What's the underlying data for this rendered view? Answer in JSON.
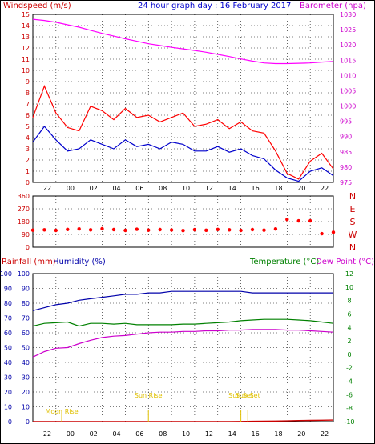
{
  "chart_data": [
    {
      "type": "line",
      "title": "24 hour graph day : 16 February 2017",
      "ylabel": "Windspeed (m/s)",
      "y2label": "Barometer (hpa)",
      "ylim": [
        0,
        15
      ],
      "y2lim": [
        975,
        1030
      ],
      "x_ticks": [
        "22",
        "00",
        "02",
        "04",
        "06",
        "08",
        "10",
        "12",
        "14",
        "16",
        "18",
        "20",
        "22",
        "00"
      ],
      "y_ticks": [
        "0",
        "1",
        "2",
        "3",
        "4",
        "5",
        "6",
        "7",
        "8",
        "9",
        "10",
        "11",
        "12",
        "13",
        "14",
        "15"
      ],
      "y2_ticks": [
        "975",
        "980",
        "985",
        "990",
        "995",
        "1000",
        "1005",
        "1010",
        "1015",
        "1020",
        "1025",
        "1030"
      ],
      "colors": {
        "gust": "#ff0000",
        "average": "#0000cc",
        "barometer": "#ff00ff"
      },
      "x": [
        0,
        1,
        2,
        3,
        4,
        5,
        6,
        7,
        8,
        9,
        10,
        11,
        12,
        13,
        14,
        15,
        16,
        17,
        18,
        19,
        20,
        21,
        22,
        23,
        24,
        25,
        26
      ],
      "series": [
        {
          "key": "gust",
          "values": [
            5.8,
            8.6,
            6.2,
            4.9,
            4.6,
            6.8,
            6.4,
            5.6,
            6.6,
            5.8,
            6.0,
            5.4,
            5.8,
            6.2,
            5.0,
            5.2,
            5.6,
            4.8,
            5.4,
            4.6,
            4.4,
            2.8,
            0.8,
            0.3,
            1.9,
            2.6,
            1.2
          ]
        },
        {
          "key": "average",
          "values": [
            3.6,
            5.0,
            3.8,
            2.8,
            3.0,
            3.8,
            3.4,
            3.0,
            3.8,
            3.2,
            3.4,
            3.0,
            3.6,
            3.4,
            2.8,
            2.8,
            3.2,
            2.7,
            3.0,
            2.4,
            2.1,
            1.1,
            0.4,
            0.1,
            1.0,
            1.3,
            0.6
          ]
        },
        {
          "key": "barometer",
          "values": [
            1028.4,
            1028.0,
            1027.4,
            1026.6,
            1025.8,
            1024.8,
            1023.8,
            1022.9,
            1022.0,
            1021.2,
            1020.4,
            1019.8,
            1019.2,
            1018.7,
            1018.2,
            1017.6,
            1016.9,
            1016.2,
            1015.4,
            1014.7,
            1014.1,
            1013.9,
            1013.9,
            1014.0,
            1014.1,
            1014.4,
            1014.6
          ]
        }
      ]
    },
    {
      "type": "scatter",
      "ylim": [
        0,
        360
      ],
      "y_ticks": [
        "0",
        "90",
        "180",
        "270",
        "360"
      ],
      "y2_ticks": [
        "N",
        "W",
        "S",
        "E",
        "N"
      ],
      "x_ticks": [
        "22",
        "00",
        "02",
        "04",
        "06",
        "08",
        "10",
        "12",
        "14",
        "16",
        "18",
        "20",
        "22",
        "00"
      ],
      "color": "#ff0000",
      "x": [
        0,
        1,
        2,
        3,
        4,
        5,
        6,
        7,
        8,
        9,
        10,
        11,
        12,
        13,
        14,
        15,
        16,
        17,
        18,
        19,
        20,
        21,
        22,
        23,
        24,
        25,
        26
      ],
      "values": [
        120,
        122,
        118,
        125,
        128,
        122,
        130,
        124,
        118,
        126,
        120,
        124,
        121,
        117,
        123,
        119,
        125,
        122,
        118,
        124,
        120,
        128,
        195,
        185,
        185,
        95,
        105
      ]
    },
    {
      "type": "line",
      "ylabel": "Rainfall (mm)",
      "ylabel2": "Humidity (%)",
      "y3label": "Temperature (°C)",
      "y4label": "Dew Point (°C)",
      "ylim": [
        0,
        100
      ],
      "y2lim": [
        -10,
        12
      ],
      "y_ticks": [
        "0",
        "10",
        "20",
        "30",
        "40",
        "50",
        "60",
        "70",
        "80",
        "90",
        "100"
      ],
      "y2_ticks": [
        "-10",
        "-8",
        "-6",
        "-4",
        "-2",
        "0",
        "2",
        "4",
        "6",
        "8",
        "10",
        "12"
      ],
      "x_ticks": [
        "22",
        "00",
        "02",
        "04",
        "06",
        "08",
        "10",
        "12",
        "14",
        "16",
        "18",
        "20",
        "22",
        "00"
      ],
      "colors": {
        "humidity": "#0000aa",
        "temperature": "#008000",
        "dewpoint": "#cc00cc",
        "rainfall": "#cc0000"
      },
      "annotations": [
        {
          "label": "Moon Rise",
          "x": 2.5
        },
        {
          "label": "Sun Rise",
          "x": 10.0
        },
        {
          "label": "Sun Set",
          "x": 18.6
        },
        {
          "label": "Sun Set",
          "x": 18.0
        }
      ],
      "x": [
        0,
        1,
        2,
        3,
        4,
        5,
        6,
        7,
        8,
        9,
        10,
        11,
        12,
        13,
        14,
        15,
        16,
        17,
        18,
        19,
        20,
        21,
        22,
        23,
        24,
        25,
        26
      ],
      "series": [
        {
          "key": "humidity",
          "values": [
            75,
            77,
            79,
            80,
            82,
            83,
            84,
            85,
            86,
            86,
            87,
            87,
            88,
            88,
            88,
            88,
            88,
            88,
            88,
            87,
            87,
            87,
            87,
            87,
            87,
            87,
            87
          ]
        },
        {
          "key": "temperature",
          "values": [
            4.2,
            4.6,
            4.7,
            4.8,
            4.2,
            4.6,
            4.6,
            4.5,
            4.6,
            4.4,
            4.4,
            4.4,
            4.4,
            4.5,
            4.5,
            4.6,
            4.7,
            4.8,
            5.0,
            5.1,
            5.2,
            5.2,
            5.2,
            5.1,
            5.0,
            4.8,
            4.6
          ]
        },
        {
          "key": "dewpoint",
          "values": [
            -0.4,
            0.4,
            0.9,
            1.0,
            1.6,
            2.1,
            2.5,
            2.7,
            2.8,
            3.0,
            3.2,
            3.3,
            3.3,
            3.4,
            3.4,
            3.5,
            3.5,
            3.6,
            3.6,
            3.7,
            3.7,
            3.7,
            3.6,
            3.6,
            3.5,
            3.4,
            3.3
          ]
        },
        {
          "key": "rainfall",
          "values": [
            0,
            0,
            0,
            0,
            0,
            0,
            0,
            0,
            0,
            0,
            0,
            0,
            0,
            0,
            0,
            0,
            0,
            0,
            0.1,
            0.2,
            0.3,
            0.4,
            0.5,
            0.7,
            0.8,
            0.9,
            1.0
          ]
        }
      ]
    }
  ]
}
